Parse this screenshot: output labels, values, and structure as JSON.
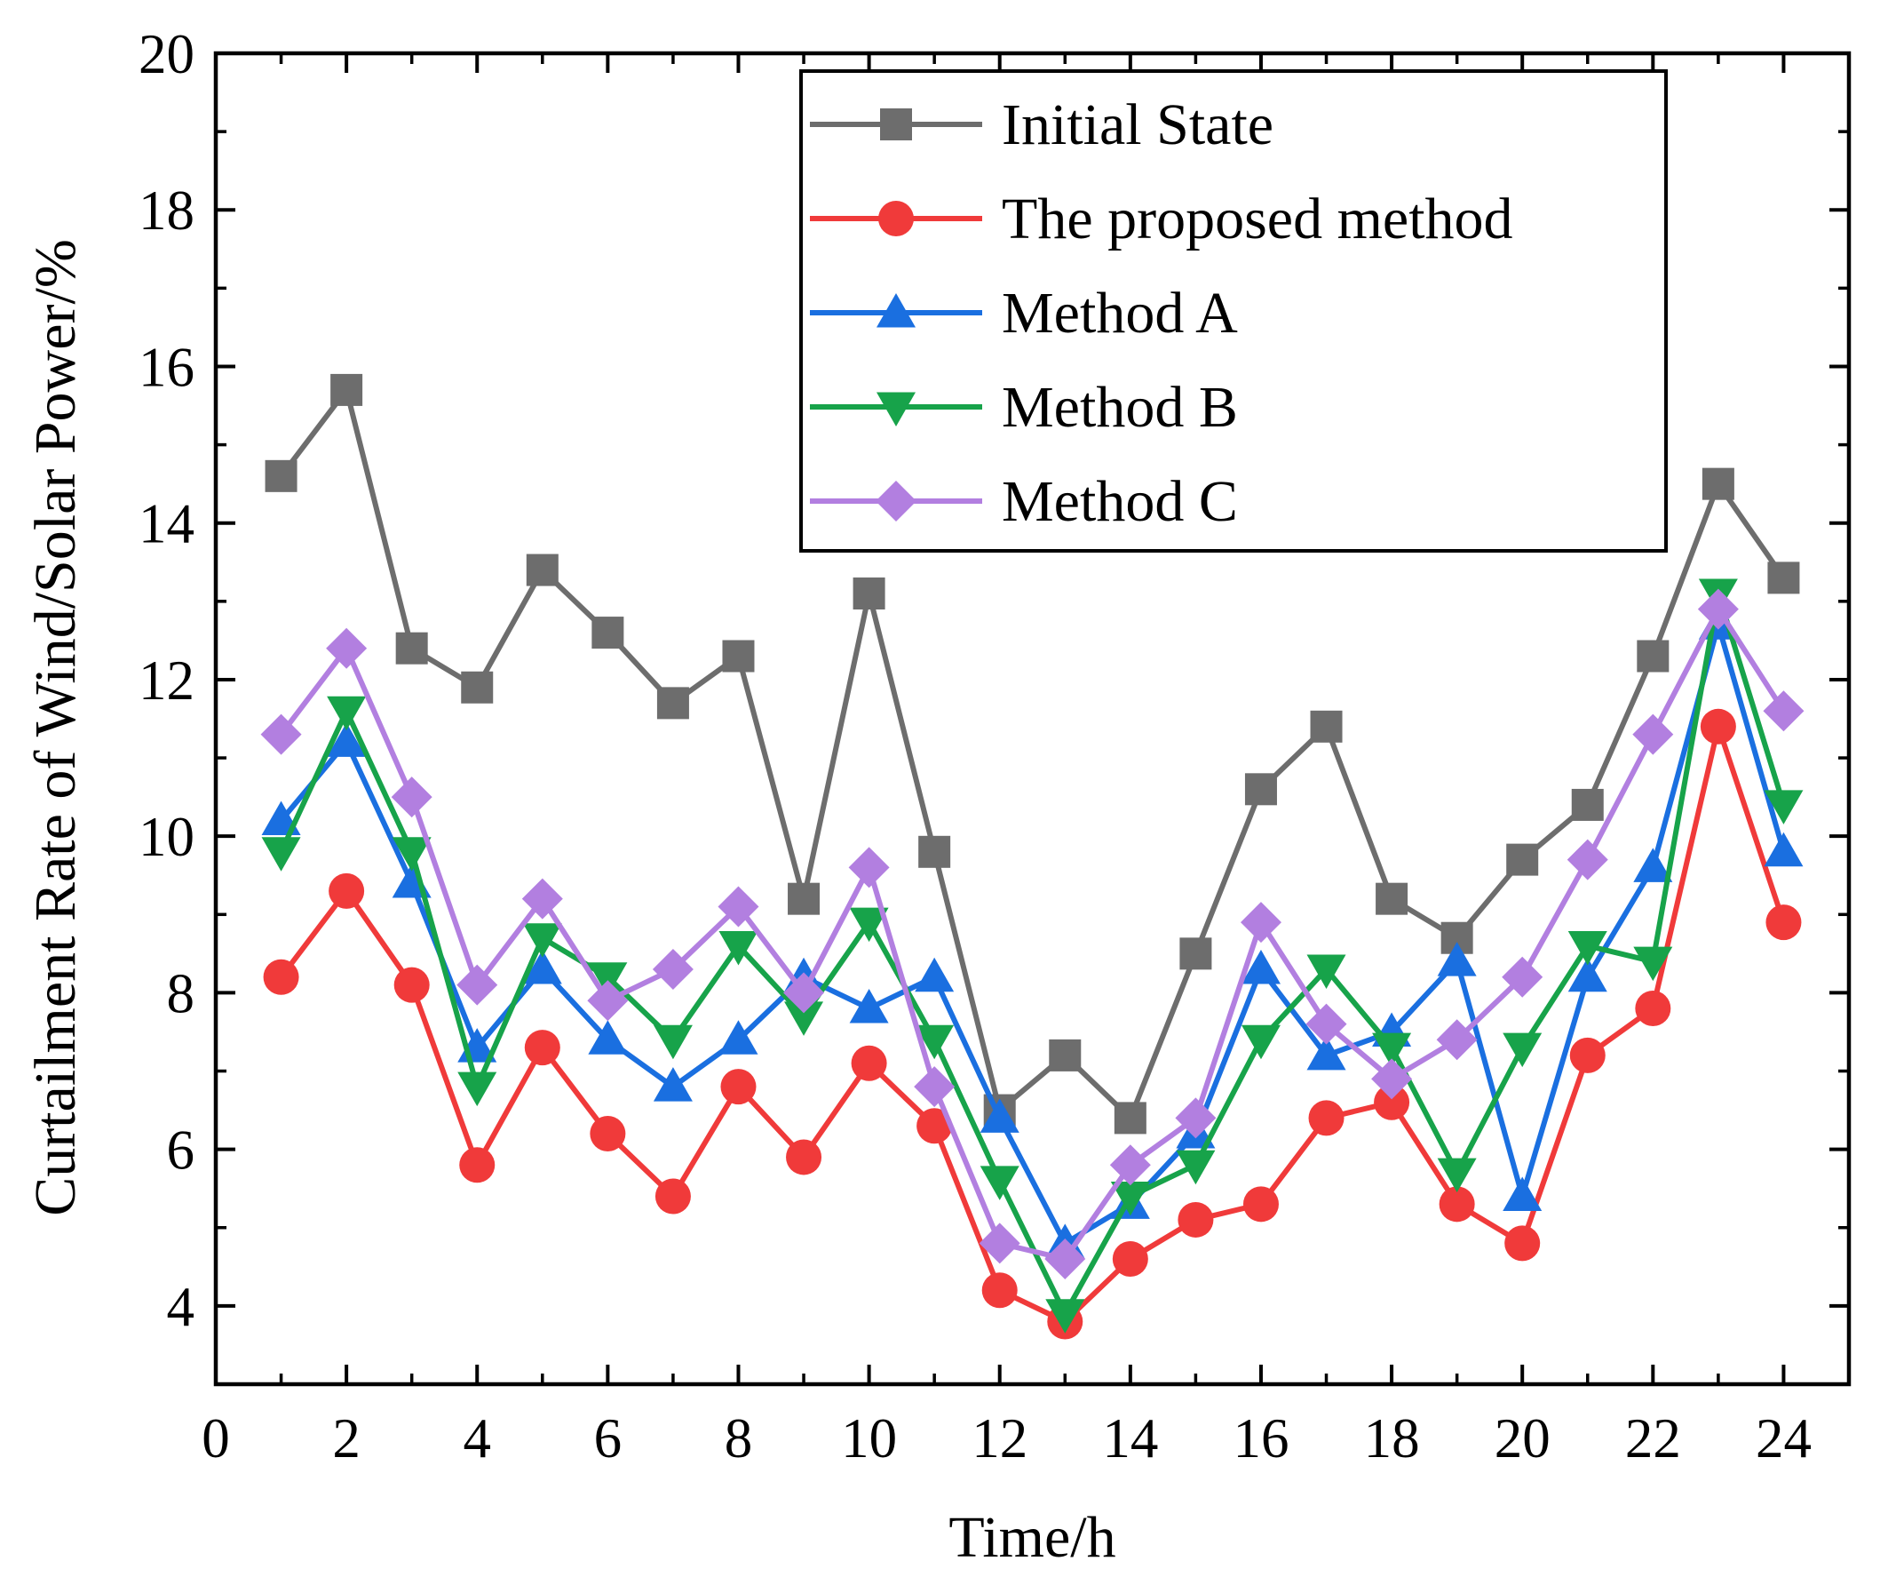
{
  "chart_data": {
    "type": "line",
    "title": "",
    "xlabel": "Time/h",
    "ylabel": "Curtailment Rate of Wind/Solar Power/%",
    "xlim": [
      0,
      25
    ],
    "ylim": [
      3,
      20
    ],
    "xticks": [
      0,
      2,
      4,
      6,
      8,
      10,
      12,
      14,
      16,
      18,
      20,
      22,
      24
    ],
    "yticks": [
      4,
      6,
      8,
      10,
      12,
      14,
      16,
      18,
      20
    ],
    "x": [
      1,
      2,
      3,
      4,
      5,
      6,
      7,
      8,
      9,
      10,
      11,
      12,
      13,
      14,
      15,
      16,
      17,
      18,
      19,
      20,
      21,
      22,
      23,
      24
    ],
    "legend_position": "top-right",
    "grid": false,
    "series": [
      {
        "name": "Initial State",
        "color": "#6d6d6d",
        "marker": "square",
        "values": [
          14.6,
          15.7,
          12.4,
          11.9,
          13.4,
          12.6,
          11.7,
          12.3,
          9.2,
          13.1,
          9.8,
          6.5,
          7.2,
          6.4,
          8.5,
          10.6,
          11.4,
          9.2,
          8.7,
          9.7,
          10.4,
          12.3,
          14.5,
          13.3
        ]
      },
      {
        "name": "The proposed method",
        "color": "#f03a3a",
        "marker": "circle",
        "values": [
          8.2,
          9.3,
          8.1,
          5.8,
          7.3,
          6.2,
          5.4,
          6.8,
          5.9,
          7.1,
          6.3,
          4.2,
          3.8,
          4.6,
          5.1,
          5.3,
          6.4,
          6.6,
          5.3,
          4.8,
          7.2,
          7.8,
          11.4,
          8.9
        ]
      },
      {
        "name": "Method A",
        "color": "#1a6fe0",
        "marker": "triangle-up",
        "values": [
          10.2,
          11.2,
          9.4,
          7.3,
          8.3,
          7.4,
          6.8,
          7.4,
          8.2,
          7.8,
          8.2,
          6.4,
          4.8,
          5.3,
          6.2,
          8.3,
          7.2,
          7.5,
          8.4,
          5.4,
          8.2,
          9.6,
          12.7,
          9.8
        ]
      },
      {
        "name": "Method B",
        "color": "#17a34a",
        "marker": "triangle-down",
        "values": [
          9.8,
          11.6,
          9.8,
          6.8,
          8.7,
          8.2,
          7.4,
          8.6,
          7.7,
          8.9,
          7.4,
          5.6,
          3.9,
          5.4,
          5.8,
          7.4,
          8.3,
          7.3,
          5.7,
          7.3,
          8.6,
          8.4,
          13.1,
          10.4
        ]
      },
      {
        "name": "Method C",
        "color": "#b27fe0",
        "marker": "diamond",
        "values": [
          11.3,
          12.4,
          10.5,
          8.1,
          9.2,
          7.9,
          8.3,
          9.1,
          8.0,
          9.6,
          6.8,
          4.8,
          4.6,
          5.8,
          6.4,
          8.9,
          7.6,
          6.9,
          7.4,
          8.2,
          9.7,
          11.3,
          12.9,
          11.6
        ]
      }
    ]
  }
}
